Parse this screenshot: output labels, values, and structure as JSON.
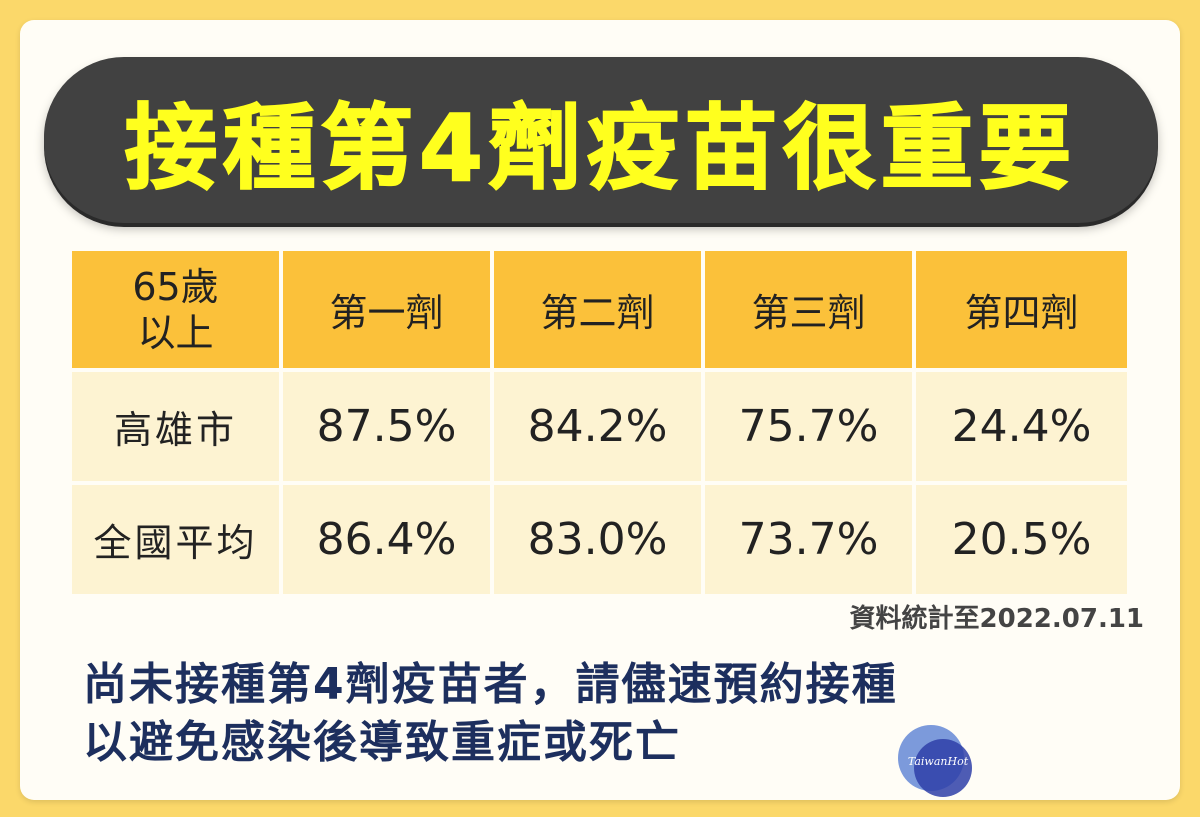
{
  "title": "接種第4劑疫苗很重要",
  "table": {
    "corner": [
      "65歲",
      "以上"
    ],
    "headers": [
      "第一劑",
      "第二劑",
      "第三劑",
      "第四劑"
    ],
    "rows": [
      {
        "label": "高雄市",
        "values": [
          "87.5%",
          "84.2%",
          "75.7%",
          "24.4%"
        ]
      },
      {
        "label": "全國平均",
        "values": [
          "86.4%",
          "83.0%",
          "73.7%",
          "20.5%"
        ]
      }
    ]
  },
  "source_note": "資料統計至2022.07.11",
  "footer": {
    "line1": "尚未接種第4劑疫苗者，請儘速預約接種",
    "line2": "以避免感染後導致重症或死亡"
  },
  "logo": {
    "text": "TaiwanHot"
  },
  "colors": {
    "background": "#fbd86a",
    "banner": "#414141",
    "title": "#ffff1e",
    "header_cell": "#fbc13a",
    "body_cell": "#fdf3d2",
    "footer_text": "#1d2f5e"
  }
}
